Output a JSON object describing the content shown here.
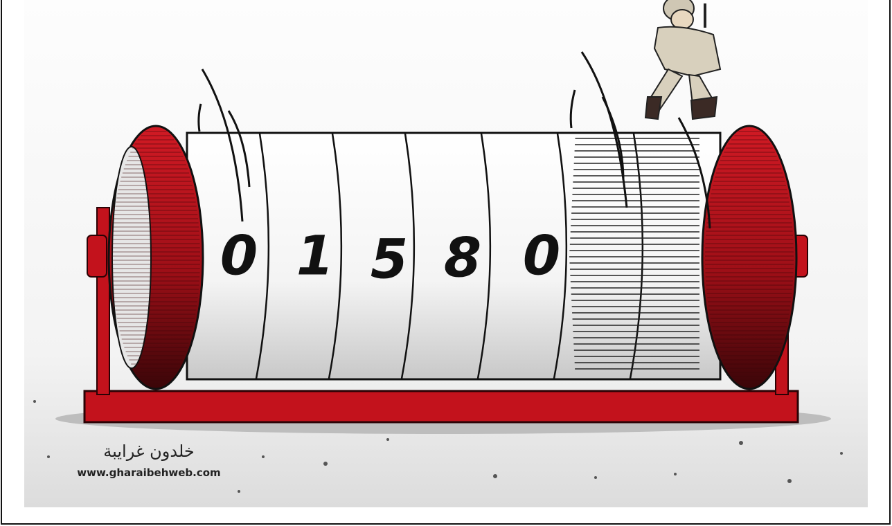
{
  "counter": {
    "digits": [
      "0",
      "1",
      "5",
      "8",
      "0"
    ]
  },
  "signature": {
    "name": "خلدون غرايبة",
    "url": "www.gharaibehweb.com"
  }
}
